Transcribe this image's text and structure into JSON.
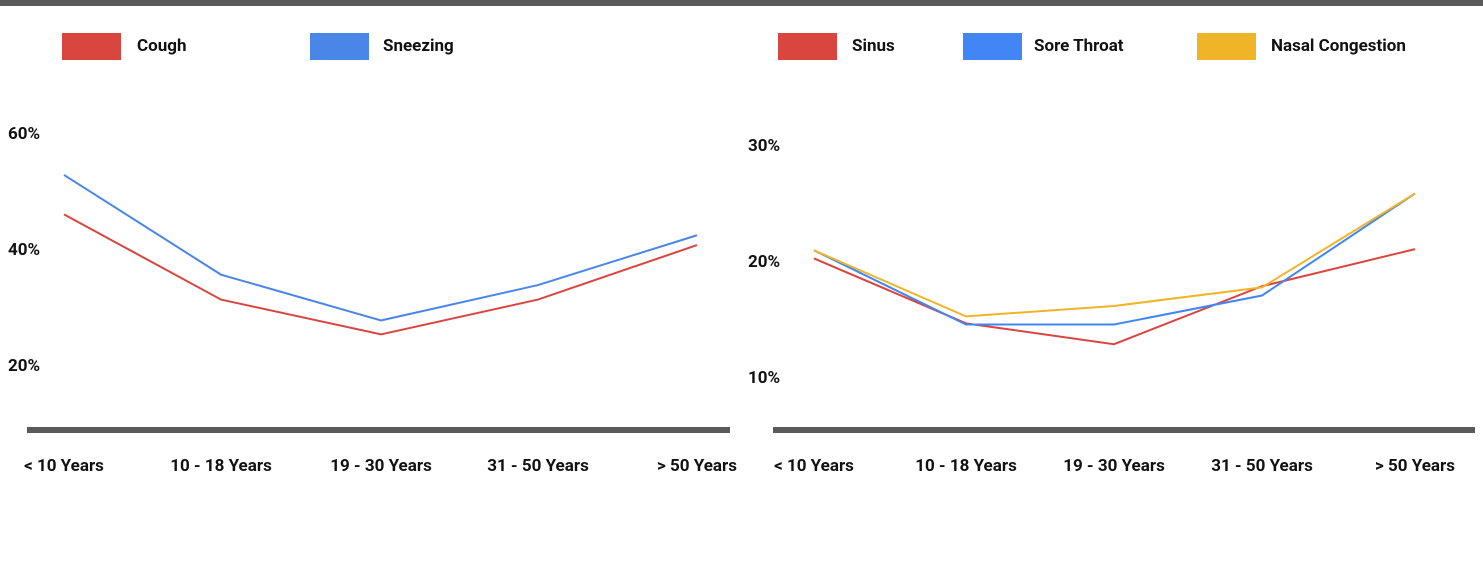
{
  "chart_data": [
    {
      "type": "line",
      "categories": [
        "< 10 Years",
        "10 - 18 Years",
        "19 - 30 Years",
        "31 - 50 Years",
        "> 50 Years"
      ],
      "series": [
        {
          "name": "Cough",
          "color": "#d9453f",
          "values": [
            46.2,
            31.5,
            25.5,
            31.5,
            40.9
          ]
        },
        {
          "name": "Sneezing",
          "color": "#4a86e8",
          "values": [
            53,
            35.8,
            27.9,
            34,
            42.6
          ]
        }
      ],
      "ylim": [
        9,
        68
      ],
      "yticks": [
        {
          "value": 20,
          "label": "20%"
        },
        {
          "value": 40,
          "label": "40%"
        },
        {
          "value": 60,
          "label": "60%"
        }
      ]
    },
    {
      "type": "line",
      "categories": [
        "< 10 Years",
        "10 - 18 Years",
        "19 - 30 Years",
        "31 - 50 Years",
        "> 50 Years"
      ],
      "series": [
        {
          "name": "Sinus",
          "color": "#d9453f",
          "values": [
            20.3,
            14.7,
            12.9,
            17.9,
            21.1
          ]
        },
        {
          "name": "Sore Throat",
          "color": "#4285f4",
          "values": [
            21,
            14.6,
            14.6,
            17.1,
            25.9
          ]
        },
        {
          "name": "Nasal Congestion",
          "color": "#f0b429",
          "values": [
            21,
            15.3,
            16.2,
            17.8,
            25.9
          ]
        }
      ],
      "ylim": [
        5.5,
        35
      ],
      "yticks": [
        {
          "value": 10,
          "label": "10%"
        },
        {
          "value": 20,
          "label": "20%"
        },
        {
          "value": 30,
          "label": "30%"
        }
      ]
    }
  ]
}
